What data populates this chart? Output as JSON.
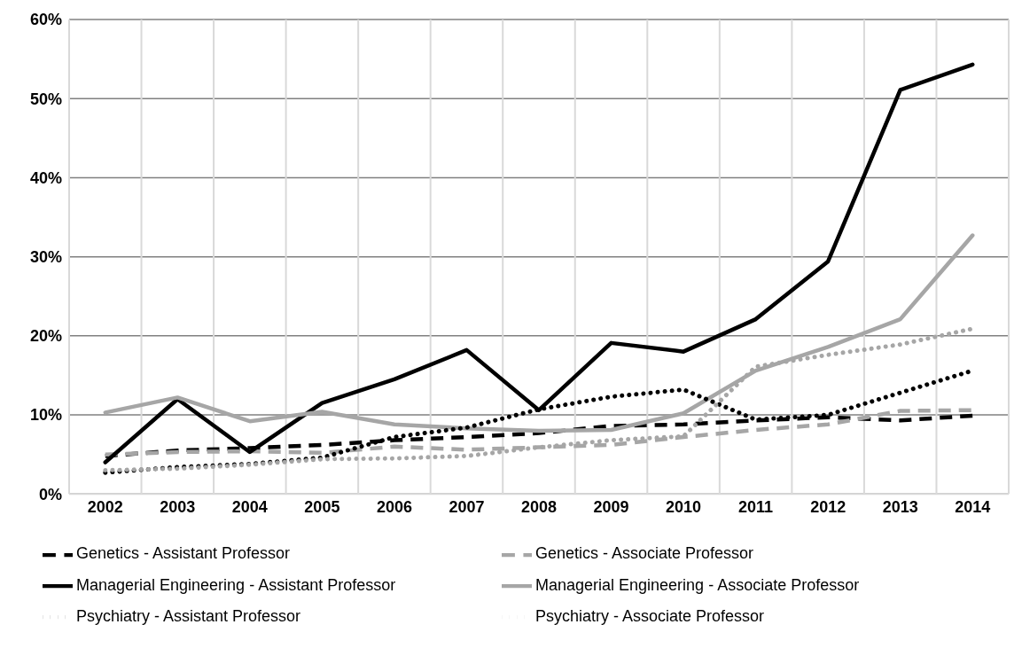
{
  "chart_data": {
    "type": "line",
    "categories": [
      "2002",
      "2003",
      "2004",
      "2005",
      "2006",
      "2007",
      "2008",
      "2009",
      "2010",
      "2011",
      "2012",
      "2013",
      "2014"
    ],
    "ylim": [
      0,
      60
    ],
    "yticks": [
      {
        "value": 0,
        "label": "0%"
      },
      {
        "value": 10,
        "label": "10%"
      },
      {
        "value": 20,
        "label": "20%"
      },
      {
        "value": 30,
        "label": "30%"
      },
      {
        "value": 40,
        "label": "40%"
      },
      {
        "value": 50,
        "label": "50%"
      },
      {
        "value": 60,
        "label": "60%"
      }
    ],
    "grid": true,
    "legend": "bottom",
    "marker": "none",
    "series": [
      {
        "name": "Genetics - Assistant Professor",
        "color": "#000000",
        "line_style": "dashed",
        "values": [
          4.8,
          5.5,
          5.8,
          6.2,
          6.8,
          7.2,
          7.7,
          8.6,
          8.8,
          9.3,
          9.7,
          9.3,
          9.9
        ]
      },
      {
        "name": "Genetics - Associate Professor",
        "color": "#a6a6a6",
        "line_style": "dashed",
        "values": [
          5.0,
          5.3,
          5.4,
          5.2,
          6.0,
          5.6,
          5.9,
          6.2,
          7.2,
          8.1,
          8.8,
          10.5,
          10.6
        ]
      },
      {
        "name": "Managerial Engineering - Assistant Professor",
        "color": "#000000",
        "line_style": "solid",
        "values": [
          4.0,
          12.0,
          5.3,
          11.5,
          14.5,
          18.2,
          10.6,
          19.1,
          18.0,
          22.1,
          29.4,
          51.1,
          54.3
        ]
      },
      {
        "name": "Managerial Engineering - Associate Professor",
        "color": "#a6a6a6",
        "line_style": "solid",
        "values": [
          10.3,
          12.2,
          9.2,
          10.4,
          8.8,
          8.3,
          8.0,
          8.1,
          10.2,
          15.6,
          18.6,
          22.1,
          32.7
        ]
      },
      {
        "name": "Psychiatry - Assistant Professor",
        "color": "#000000",
        "line_style": "dotted",
        "values": [
          2.7,
          3.4,
          3.8,
          4.6,
          7.2,
          8.4,
          10.7,
          12.3,
          13.2,
          9.4,
          10.0,
          12.8,
          15.6
        ]
      },
      {
        "name": "Psychiatry - Associate Professor",
        "color": "#a6a6a6",
        "line_style": "dotted",
        "values": [
          3.0,
          3.2,
          3.7,
          4.4,
          4.5,
          4.8,
          5.9,
          6.8,
          7.3,
          16.1,
          17.6,
          18.9,
          20.9
        ]
      }
    ]
  }
}
